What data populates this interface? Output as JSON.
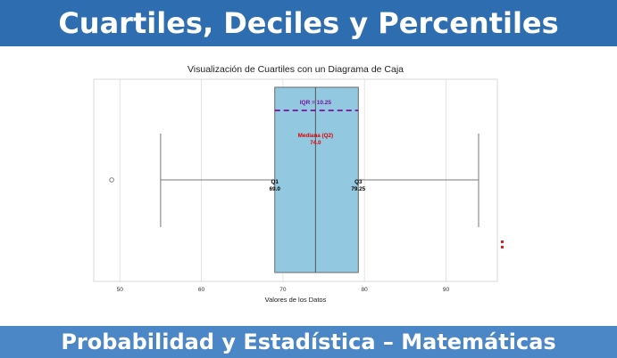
{
  "header": {
    "title": "Cuartiles, Deciles y Percentiles"
  },
  "footer": {
    "subtitle": "Probabilidad y Estadística – Matemáticas"
  },
  "colors": {
    "header_bg": "#2f6db1",
    "footer_bg": "#4b86c6",
    "box_fill": "#92c8e0",
    "iqr_line": "#7b0fa0",
    "median_text": "#e00000"
  },
  "chart_data": {
    "type": "box",
    "title": "Visualización de Cuartiles con un Diagrama de Caja",
    "xlabel": "Valores de los Datos",
    "ylabel": "",
    "xlim": [
      46.8,
      96.3
    ],
    "xticks": [
      50,
      60,
      70,
      80,
      90
    ],
    "grid": true,
    "orientation": "horizontal",
    "box": {
      "whisker_low": 55,
      "q1": 69.0,
      "median": 74.0,
      "q3": 79.25,
      "whisker_high": 94
    },
    "outliers": [
      49
    ],
    "annotations": {
      "iqr": "IQR = 10.25",
      "median_label": "Mediana (Q2)",
      "median_value": "74.0",
      "q1_label": "Q1",
      "q1_value": "69.0",
      "q3_label": "Q3",
      "q3_value": "79.25"
    }
  }
}
